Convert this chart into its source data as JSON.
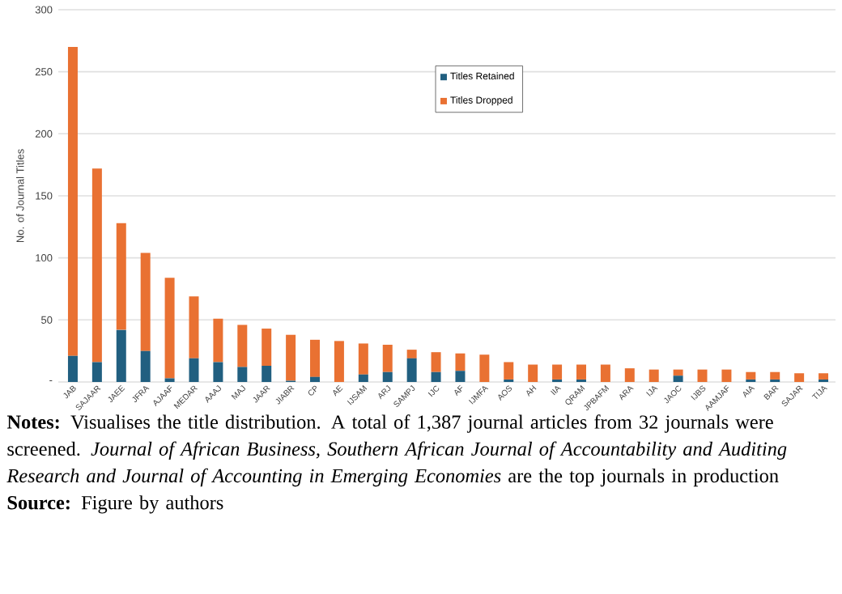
{
  "chart_data": {
    "type": "bar",
    "stacked": true,
    "ylabel": "No. of Journal Titles",
    "categories": [
      "JAB",
      "SAJAAR",
      "JAEE",
      "JFRA",
      "AJAAF",
      "MEDAR",
      "AAAJ",
      "MAJ",
      "JAAR",
      "JIABR",
      "CP",
      "AE",
      "IJSAM",
      "ARJ",
      "SAMPJ",
      "IJC",
      "AF",
      "IJMFA",
      "AOS",
      "AH",
      "IIA",
      "QRAM",
      "JPBAFM",
      "ARA",
      "IJA",
      "JAOC",
      "IJBS",
      "AAMJAF",
      "AIA",
      "BAR",
      "SAJAR",
      "TIJA"
    ],
    "series": [
      {
        "name": "Titles Retained",
        "color": "#215f80",
        "values": [
          21,
          16,
          42,
          25,
          3,
          19,
          16,
          12,
          13,
          1,
          4,
          0,
          6,
          8,
          19,
          8,
          9,
          0,
          2,
          0,
          2,
          2,
          0,
          0,
          0,
          5,
          0,
          0,
          2,
          2,
          0,
          2
        ]
      },
      {
        "name": "Titles Dropped",
        "color": "#e97132",
        "values": [
          249,
          156,
          86,
          79,
          81,
          50,
          35,
          34,
          30,
          37,
          30,
          33,
          25,
          22,
          7,
          16,
          14,
          22,
          14,
          14,
          12,
          12,
          14,
          11,
          10,
          5,
          10,
          10,
          6,
          6,
          7,
          5
        ]
      }
    ],
    "ylim": [
      0,
      300
    ],
    "yticks": [
      {
        "value": 0,
        "label": "-"
      },
      50,
      100,
      150,
      200,
      250,
      300
    ],
    "grid": "y",
    "legend": "top",
    "annotations": [
      "**Notes:** Visualises the title distribution. A total of 1,387 journal articles from 32 journals were screened. *Journal of African Business, Southern African Journal of Accountability and Auditing Research and Journal of Accounting in Emerging Economies* are the top journals in production",
      "**Source:** Figure by authors"
    ]
  }
}
